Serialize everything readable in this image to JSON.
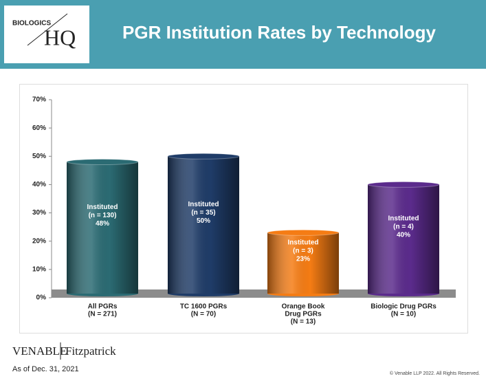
{
  "logo": {
    "top": "BIOLOGICS",
    "main": "HQ"
  },
  "chart_data": {
    "type": "bar",
    "title": "PGR Institution Rates by Technology",
    "categories": [
      [
        "All PGRs",
        "(N = 271)"
      ],
      [
        "TC 1600 PGRs",
        "(N = 70)"
      ],
      [
        "Orange Book",
        "Drug PGRs",
        "(N = 13)"
      ],
      [
        "Biologic Drug PGRs",
        "(N = 10)"
      ]
    ],
    "values": [
      48,
      50,
      23,
      40
    ],
    "value_labels": [
      "48%",
      "50%",
      "23%",
      "40%"
    ],
    "bar_notes": [
      [
        "Instituted",
        "(n = 130)"
      ],
      [
        "Instituted",
        "(n = 35)"
      ],
      [
        "Instituted",
        "(n = 3)"
      ],
      [
        "Instituted",
        "(n = 4)"
      ]
    ],
    "colors": [
      "#2b6b73",
      "#1f3c68",
      "#f57c14",
      "#5b2b8c"
    ],
    "ylim": [
      0,
      70
    ],
    "yticks": [
      {
        "value": 0,
        "label": "0%"
      },
      {
        "value": 10,
        "label": "10%"
      },
      {
        "value": 20,
        "label": "20%"
      },
      {
        "value": 30,
        "label": "30%"
      },
      {
        "value": 40,
        "label": "40%"
      },
      {
        "value": 50,
        "label": "50%"
      },
      {
        "value": 60,
        "label": "60%"
      },
      {
        "value": 70,
        "label": "70%"
      }
    ],
    "grid": false
  },
  "footer": {
    "brand_left": "VENABLE",
    "brand_right": "Fitzpatrick",
    "date": "As of Dec. 31, 2021",
    "copyright": "© Venable LLP 2022. All Rights Reserved."
  }
}
